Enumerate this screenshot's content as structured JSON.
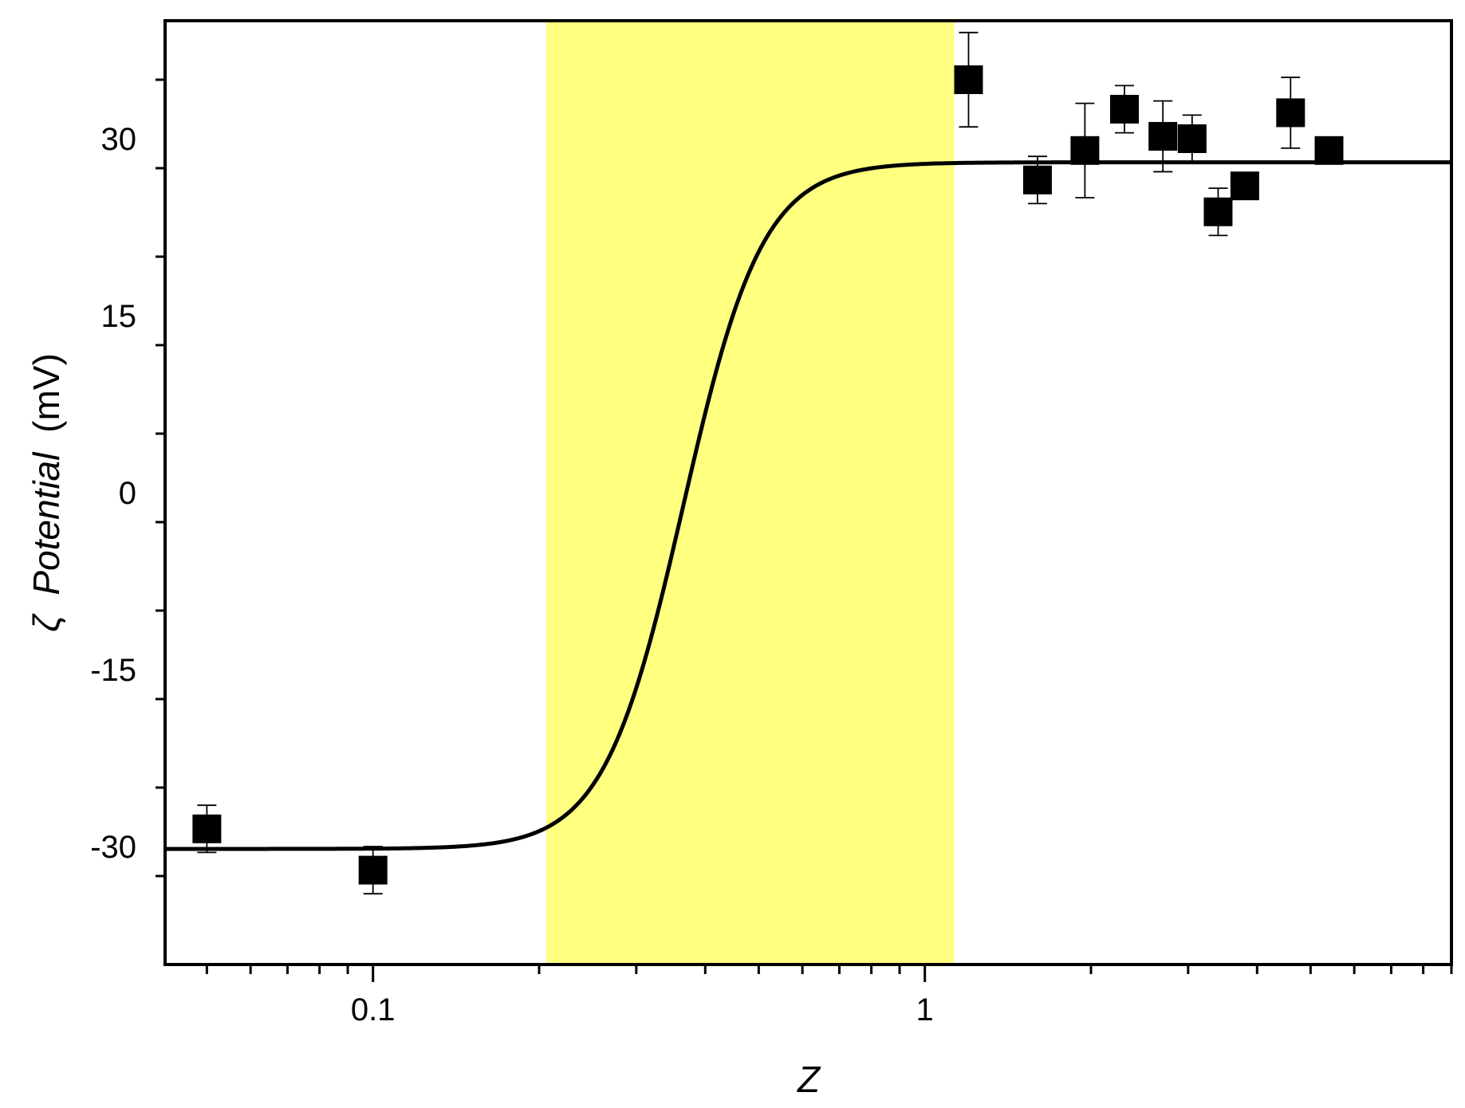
{
  "chart_data": {
    "type": "scatter",
    "xlabel": "Z",
    "ylabel_symbol": "ζ",
    "ylabel_italic": "Potential",
    "ylabel_unit": "(mV)",
    "xscale": "log",
    "xlim": [
      0.042,
      9.0
    ],
    "ylim": [
      -40,
      40
    ],
    "xticks": [
      {
        "value": 0.1,
        "label": "0.1"
      },
      {
        "value": 1,
        "label": "1"
      }
    ],
    "yticks": [
      {
        "value": -30,
        "label": "-30"
      },
      {
        "value": -15,
        "label": "-15"
      },
      {
        "value": 0,
        "label": "0"
      },
      {
        "value": 15,
        "label": "15"
      },
      {
        "value": 30,
        "label": "30"
      }
    ],
    "grid": false,
    "shaded_region": {
      "x": [
        0.206,
        1.13
      ],
      "color": "#ffff80"
    },
    "marker_color": "#000000",
    "series": [
      {
        "x": [
          0.05,
          0.1,
          1.2,
          1.6,
          1.95,
          2.3,
          2.7,
          3.05,
          3.4,
          3.8,
          4.6,
          5.4
        ],
        "y": [
          -28.5,
          -32,
          35,
          26.5,
          29,
          32.5,
          30.2,
          30,
          23.8,
          26,
          32.2,
          29
        ],
        "yerr": [
          2,
          2,
          4,
          2,
          4,
          2,
          3,
          2,
          2,
          0,
          3,
          0
        ]
      }
    ],
    "fit_curve": {
      "lower": -30.2,
      "upper": 28,
      "x0": 0.365,
      "width_decades": 0.072
    }
  }
}
